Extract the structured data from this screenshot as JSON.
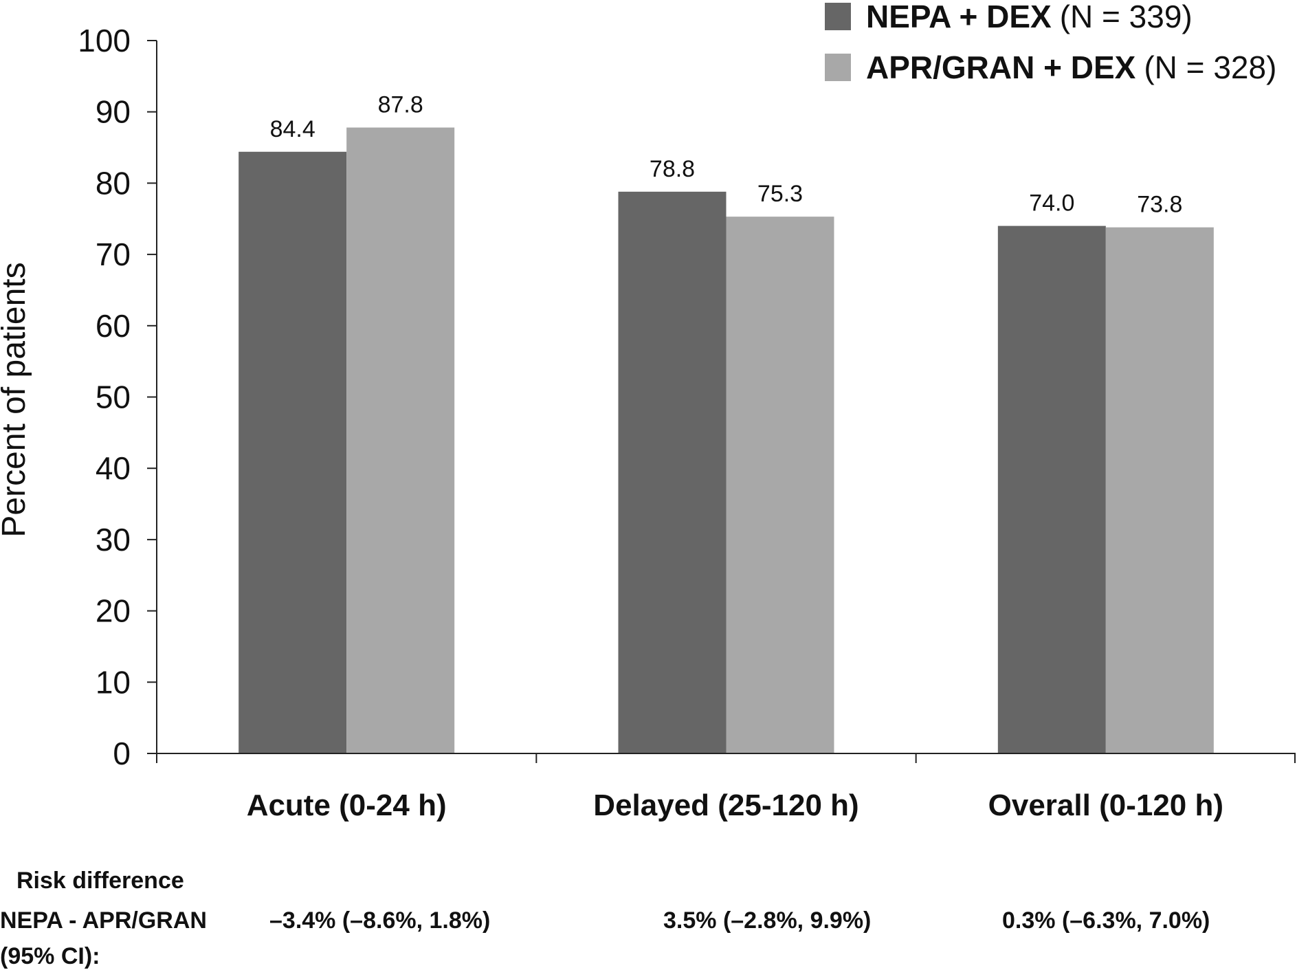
{
  "chart_data": {
    "type": "bar",
    "categories": [
      "Acute (0-24 h)",
      "Delayed (25-120 h)",
      "Overall (0-120 h)"
    ],
    "series": [
      {
        "name": "NEPA + DEX",
        "n_label": "(N = 339)",
        "color": "#666666",
        "values": [
          84.4,
          78.8,
          74.0
        ],
        "value_labels": [
          "84.4",
          "78.8",
          "74.0"
        ]
      },
      {
        "name": "APR/GRAN + DEX",
        "n_label": "(N = 328)",
        "color": "#a8a8a8",
        "values": [
          87.8,
          75.3,
          73.8
        ],
        "value_labels": [
          "87.8",
          "75.3",
          "73.8"
        ]
      }
    ],
    "ylabel": "Percent of patients",
    "xlabel": "",
    "ylim": [
      0,
      100
    ],
    "yticks": [
      0,
      10,
      20,
      30,
      40,
      50,
      60,
      70,
      80,
      90,
      100
    ],
    "legend_position": "top-right",
    "grid": false
  },
  "risk_difference": {
    "heading": "Risk difference",
    "row_label": "NEPA - APR/GRAN",
    "ci_label": "(95% CI):",
    "values": [
      "–3.4% (–8.6%, 1.8%)",
      "3.5% (–2.8%, 9.9%)",
      "0.3% (–6.3%, 7.0%)"
    ]
  }
}
